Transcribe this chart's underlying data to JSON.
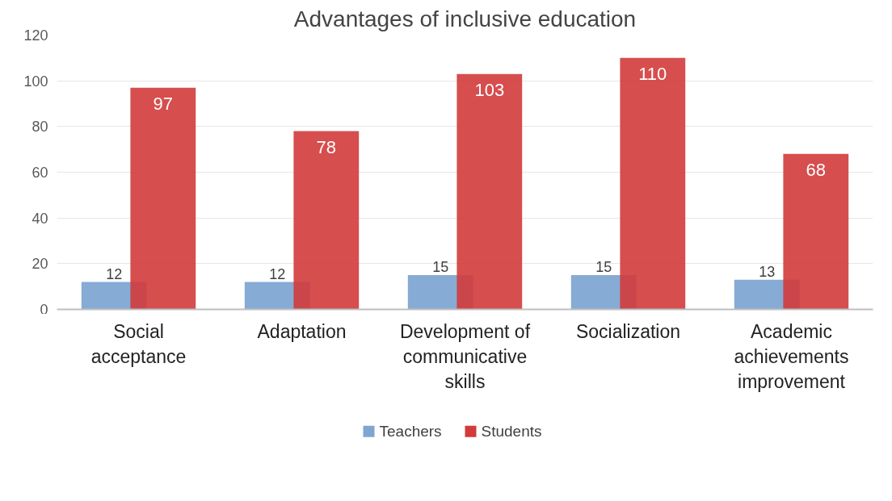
{
  "chart_data": {
    "type": "bar",
    "title": "Advantages of inclusive education",
    "categories": [
      "Social acceptance",
      "Adaptation",
      "Development of communicative skills",
      "Socialization",
      "Academic achievements improvement"
    ],
    "series": [
      {
        "name": "Teachers",
        "color": "#7fa6d2",
        "values": [
          12,
          12,
          15,
          15,
          13
        ]
      },
      {
        "name": "Students",
        "color": "#d13b3b",
        "values": [
          97,
          78,
          103,
          110,
          68
        ]
      }
    ],
    "ylim": [
      0,
      120
    ],
    "yticks": [
      0,
      20,
      40,
      60,
      80,
      100,
      120
    ],
    "grid": "y",
    "legend": "bottom",
    "data_labels": true
  }
}
